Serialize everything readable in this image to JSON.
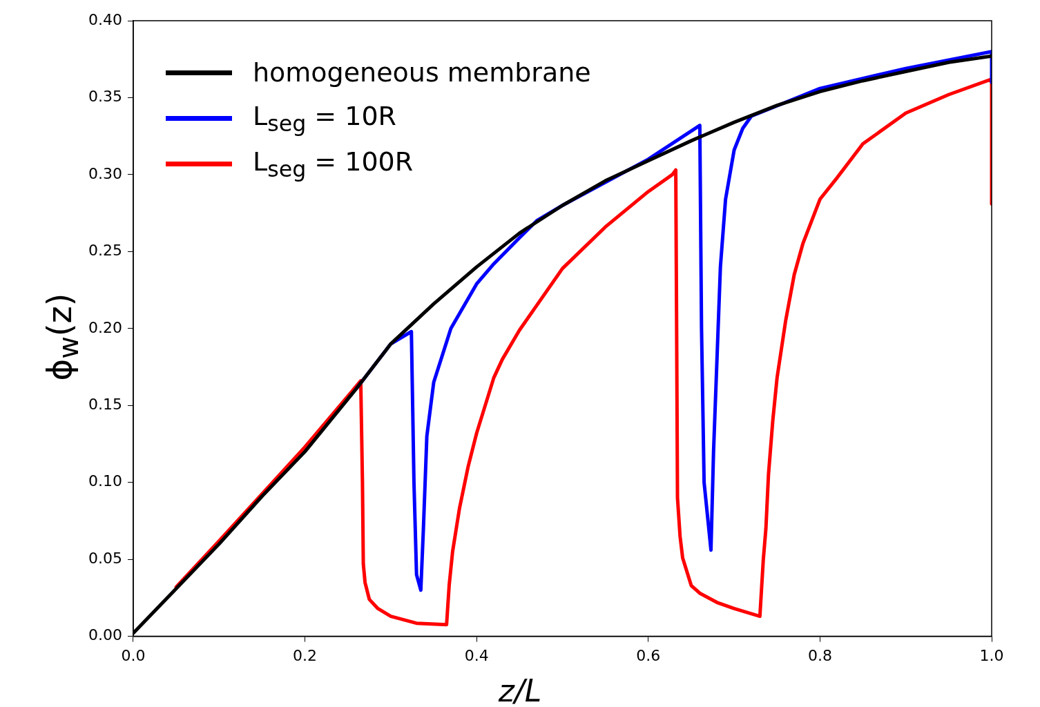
{
  "chart_data": {
    "type": "line",
    "xlabel": "z/L",
    "ylabel": "ϕ$_{w}$(z)",
    "xlim": [
      0,
      1
    ],
    "ylim": [
      0,
      0.4
    ],
    "xticks": [
      {
        "value": 0,
        "label": "0.0"
      },
      0.2,
      0.4,
      0.6,
      0.8,
      {
        "value": 1,
        "label": "1.0"
      }
    ],
    "yticks": [
      {
        "value": 0,
        "label": "0.00"
      },
      0.05,
      {
        "value": 0.1,
        "label": "0.10"
      },
      0.15,
      {
        "value": 0.2,
        "label": "0.20"
      },
      0.25,
      {
        "value": 0.3,
        "label": "0.30"
      },
      0.35,
      {
        "value": 0.4,
        "label": "0.40"
      }
    ],
    "grid": false,
    "legend": "top left",
    "marker": "none",
    "line_style": "solid",
    "series": [
      {
        "name": "homogeneous membrane",
        "color": "#000000",
        "x": [
          0,
          0.05,
          0.1,
          0.15,
          0.2,
          0.26,
          0.3,
          0.35,
          0.4,
          0.45,
          0.5,
          0.55,
          0.6,
          0.65,
          0.7,
          0.75,
          0.8,
          0.85,
          0.9,
          0.95,
          1.0
        ],
        "values": [
          0.002,
          0.031,
          0.06,
          0.091,
          0.12,
          0.161,
          0.19,
          0.216,
          0.24,
          0.262,
          0.28,
          0.296,
          0.309,
          0.322,
          0.334,
          0.345,
          0.354,
          0.361,
          0.367,
          0.373,
          0.377
        ]
      },
      {
        "name": "L$_{seg}$ = 10R",
        "color": "#0000ff",
        "x": [
          0.26,
          0.3,
          0.324,
          0.327,
          0.33,
          0.335,
          0.338,
          0.342,
          0.35,
          0.37,
          0.4,
          0.42,
          0.45,
          0.47,
          0.5,
          0.6,
          0.66,
          0.662,
          0.665,
          0.673,
          0.676,
          0.684,
          0.69,
          0.7,
          0.71,
          0.72,
          0.8,
          0.9,
          1.0,
          1.0
        ],
        "values": [
          0.161,
          0.19,
          0.198,
          0.1,
          0.04,
          0.03,
          0.07,
          0.13,
          0.165,
          0.2,
          0.229,
          0.242,
          0.259,
          0.27,
          0.28,
          0.31,
          0.332,
          0.2,
          0.1,
          0.056,
          0.12,
          0.24,
          0.284,
          0.316,
          0.33,
          0.338,
          0.356,
          0.369,
          0.38,
          0.36
        ]
      },
      {
        "name": "L$_{seg}$ = 100R",
        "color": "#ff0000",
        "x": [
          0.05,
          0.1,
          0.2,
          0.265,
          0.267,
          0.268,
          0.27,
          0.275,
          0.285,
          0.3,
          0.33,
          0.365,
          0.368,
          0.372,
          0.38,
          0.39,
          0.4,
          0.42,
          0.43,
          0.45,
          0.47,
          0.5,
          0.55,
          0.6,
          0.628,
          0.632,
          0.633,
          0.634,
          0.637,
          0.64,
          0.65,
          0.66,
          0.68,
          0.7,
          0.73,
          0.734,
          0.737,
          0.74,
          0.745,
          0.75,
          0.76,
          0.77,
          0.78,
          0.8,
          0.82,
          0.85,
          0.9,
          0.95,
          1.0,
          1.0
        ],
        "values": [
          0.032,
          0.062,
          0.123,
          0.166,
          0.1,
          0.047,
          0.035,
          0.024,
          0.018,
          0.013,
          0.0085,
          0.0076,
          0.033,
          0.055,
          0.083,
          0.11,
          0.132,
          0.168,
          0.18,
          0.199,
          0.215,
          0.239,
          0.266,
          0.289,
          0.3,
          0.303,
          0.2,
          0.09,
          0.065,
          0.051,
          0.033,
          0.028,
          0.022,
          0.018,
          0.013,
          0.05,
          0.07,
          0.105,
          0.14,
          0.168,
          0.205,
          0.235,
          0.255,
          0.284,
          0.298,
          0.32,
          0.34,
          0.352,
          0.362,
          0.281
        ]
      }
    ]
  }
}
